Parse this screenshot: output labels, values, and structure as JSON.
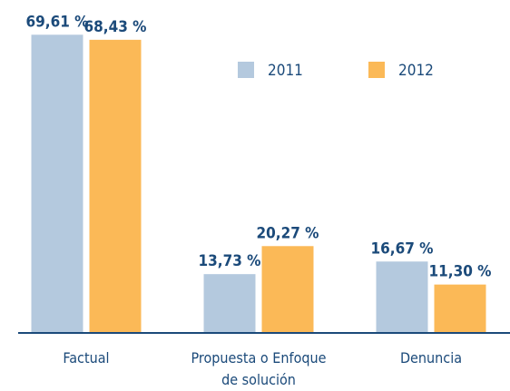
{
  "chart_data": {
    "type": "bar",
    "categories": [
      "Factual",
      "Propuesta o Enfoque de solución",
      "Denuncia"
    ],
    "series": [
      {
        "name": "2011",
        "color": "#b4c9de",
        "values": [
          69.61,
          13.73,
          16.67
        ],
        "value_labels": [
          "69,61 %",
          "13,73 %",
          "16,67 %"
        ]
      },
      {
        "name": "2012",
        "color": "#fbb957",
        "values": [
          68.43,
          20.27,
          11.3
        ],
        "value_labels": [
          "68,43 %",
          "20,27 %",
          "11,30 %"
        ]
      }
    ],
    "ylim": [
      0,
      72
    ]
  }
}
